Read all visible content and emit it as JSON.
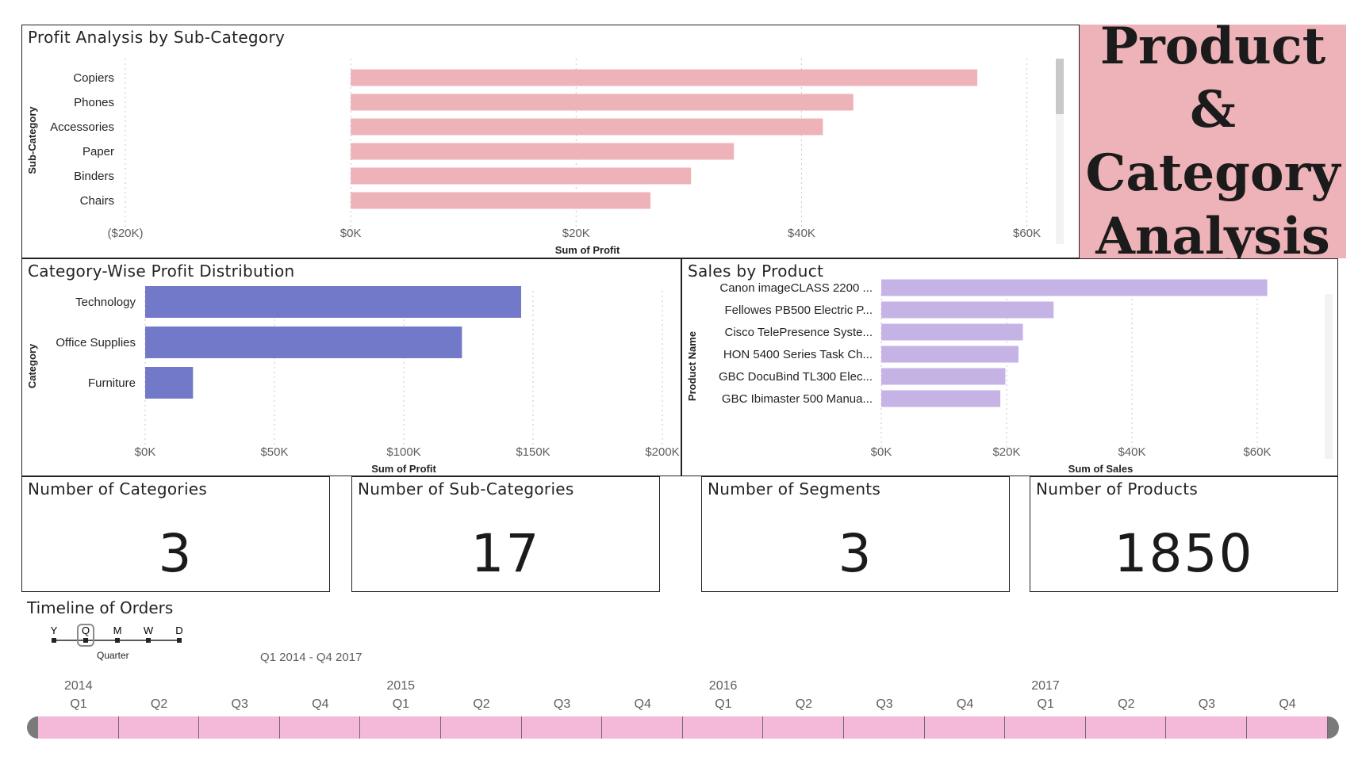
{
  "title_box": {
    "text": "Product &\nCategory\nAnalysis"
  },
  "colors": {
    "subcategory_bar": "#eeb3b8",
    "category_bar": "#7279c8",
    "product_bar": "#c6b3e6",
    "timeline_cell": "#f4b8d8",
    "title_bg": "#eeb3b8"
  },
  "chart_data": [
    {
      "id": "subcat",
      "type": "bar",
      "orientation": "horizontal",
      "title": "Profit Analysis by Sub-Category",
      "ylabel": "Sub-Category",
      "xlabel": "Sum of Profit",
      "categories": [
        "Copiers",
        "Phones",
        "Accessories",
        "Paper",
        "Binders",
        "Chairs"
      ],
      "values": [
        55600,
        44600,
        41900,
        34000,
        30200,
        26600
      ],
      "xlim": [
        -20000,
        62000
      ],
      "xticks": [
        -20000,
        0,
        20000,
        40000,
        60000
      ],
      "xtick_labels": [
        "($20K)",
        "$0K",
        "$20K",
        "$40K",
        "$60K"
      ]
    },
    {
      "id": "category",
      "type": "bar",
      "orientation": "horizontal",
      "title": "Category-Wise Profit Distribution",
      "ylabel": "Category",
      "xlabel": "Sum of Profit",
      "categories": [
        "Technology",
        "Office Supplies",
        "Furniture"
      ],
      "values": [
        145400,
        122500,
        18500
      ],
      "xlim": [
        0,
        200000
      ],
      "xticks": [
        0,
        50000,
        100000,
        150000,
        200000
      ],
      "xtick_labels": [
        "$0K",
        "$50K",
        "$100K",
        "$150K",
        "$200K"
      ]
    },
    {
      "id": "product",
      "type": "bar",
      "orientation": "horizontal",
      "title": "Sales by Product",
      "ylabel": "Product Name",
      "xlabel": "Sum of Sales",
      "categories": [
        "Canon imageCLASS 2200 ...",
        "Fellowes PB500 Electric P...",
        "Cisco TelePresence Syste...",
        "HON 5400 Series Task Ch...",
        "GBC DocuBind TL300 Elec...",
        "GBC Ibimaster 500 Manua..."
      ],
      "values": [
        61600,
        27500,
        22600,
        21900,
        19800,
        19000
      ],
      "xlim": [
        0,
        70000
      ],
      "xticks": [
        0,
        20000,
        40000,
        60000
      ],
      "xtick_labels": [
        "$0K",
        "$20K",
        "$40K",
        "$60K"
      ]
    }
  ],
  "kpis": [
    {
      "label": "Number of Categories",
      "value": "3"
    },
    {
      "label": "Number of Sub-Categories",
      "value": "17"
    },
    {
      "label": "Number of Segments",
      "value": "3"
    },
    {
      "label": "Number of Products",
      "value": "1850"
    }
  ],
  "timeline": {
    "title": "Timeline of Orders",
    "granularity": [
      "Y",
      "Q",
      "M",
      "W",
      "D"
    ],
    "selected_granularity": "Quarter",
    "range_label": "Q1 2014 - Q4 2017",
    "years": [
      "2014",
      "2015",
      "2016",
      "2017"
    ],
    "quarters": [
      "Q1",
      "Q2",
      "Q3",
      "Q4"
    ]
  }
}
